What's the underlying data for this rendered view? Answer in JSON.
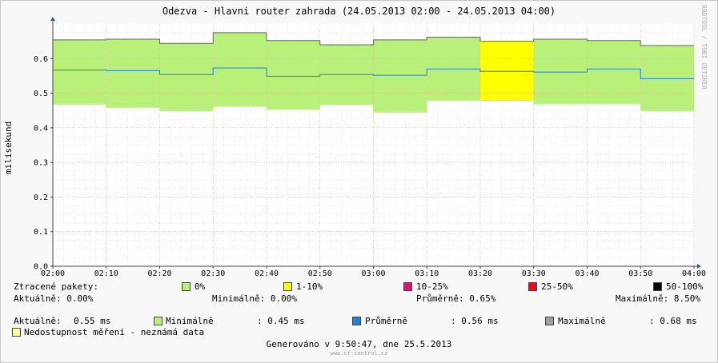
{
  "chart_data": {
    "type": "area",
    "title": "Odezva - Hlavni router zahrada (24.05.2013 02:00 - 24.05.2013 04:00)",
    "ylabel": "milisekund",
    "watermark": "RRDTOOL / TOBI OETIKER",
    "ylim": [
      0,
      0.7
    ],
    "y_ticks": [
      "0.0",
      "0.1",
      "0.2",
      "0.3",
      "0.4",
      "0.5",
      "0.6"
    ],
    "y_tick_values": [
      0,
      0.1,
      0.2,
      0.3,
      0.4,
      0.5,
      0.6
    ],
    "x_ticks": [
      "02:00",
      "02:10",
      "02:20",
      "02:30",
      "02:40",
      "02:50",
      "03:00",
      "03:10",
      "03:20",
      "03:30",
      "03:40",
      "03:50",
      "04:00"
    ],
    "grid": true,
    "intervals": [
      "02:00",
      "02:10",
      "02:20",
      "02:30",
      "02:40",
      "02:50",
      "03:00",
      "03:10",
      "03:20",
      "03:30",
      "03:40",
      "03:50"
    ],
    "series": [
      {
        "name": "Minimálně",
        "values": [
          0.468,
          0.459,
          0.449,
          0.462,
          0.453,
          0.467,
          0.445,
          0.479,
          0.479,
          0.469,
          0.469,
          0.449
        ]
      },
      {
        "name": "Průměrně",
        "values": [
          0.567,
          0.565,
          0.554,
          0.573,
          0.549,
          0.554,
          0.552,
          0.57,
          0.563,
          0.561,
          0.57,
          0.542
        ]
      },
      {
        "name": "Maximálně",
        "values": [
          0.654,
          0.656,
          0.644,
          0.675,
          0.652,
          0.64,
          0.654,
          0.662,
          0.65,
          0.656,
          0.652,
          0.638
        ]
      }
    ],
    "loss_bands": [
      "0%",
      "0%",
      "0%",
      "0%",
      "0%",
      "0%",
      "0%",
      "0%",
      "1-10%",
      "0%",
      "0%",
      "0%"
    ],
    "colors": {
      "0%": "#b9f07a",
      "1-10%": "#ffff00",
      "10-25%": "#e0116f",
      "25-50%": "#e81010",
      "50-100%": "#000000",
      "avg_line": "#2080e0",
      "max_line": "#666666",
      "min_line": "#c0f08f",
      "nodata": "#ffff99",
      "max_swatch": "#a0a0a0",
      "grid": "#f0a0a0",
      "axis": "#444444"
    }
  },
  "legend": {
    "loss_title": "Ztracené pakety:",
    "loss_items": [
      {
        "label": "0%",
        "color": "#b9f07a"
      },
      {
        "label": "1-10%",
        "color": "#ffff00"
      },
      {
        "label": "10-25%",
        "color": "#e0116f"
      },
      {
        "label": "25-50%",
        "color": "#e81010"
      },
      {
        "label": "50-100%",
        "color": "#000000"
      }
    ],
    "loss_stats": {
      "current": "Aktuálně: 0.00%",
      "min": "Minimálně: 0.00%",
      "avg": "Průměrně: 0.65%",
      "max": "Maximálně: 8.50%"
    },
    "response": {
      "current_label": "Aktuálně:",
      "current_value": "0.55 ms",
      "min_label": "Minimálně",
      "min_value": ":  0.45 ms",
      "avg_label": "Průměrně",
      "avg_value": ":  0.56 ms",
      "max_label": "Maximálně",
      "max_value": ":  0.68 ms"
    },
    "nodata_label": "Nedostupnost měření - neznámá data"
  },
  "footer": {
    "generated": "Generováno v 9:50:47, dne 25.5.2013",
    "site": "www.cf-control.cz"
  }
}
